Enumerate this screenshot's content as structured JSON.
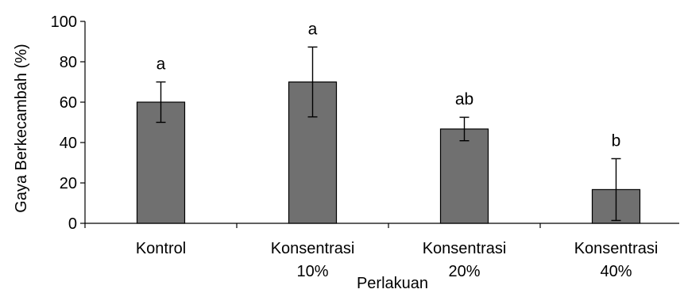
{
  "chart_data": {
    "type": "bar",
    "title": "",
    "xlabel": "Perlakuan",
    "ylabel": "Gaya Berkecambah (%)",
    "ylim": [
      0,
      100
    ],
    "yticks": [
      0,
      20,
      40,
      60,
      80,
      100
    ],
    "grid": false,
    "categories": [
      [
        "Kontrol"
      ],
      [
        "Konsentrasi",
        "10%"
      ],
      [
        "Konsentrasi",
        "20%"
      ],
      [
        "Konsentrasi",
        "40%"
      ]
    ],
    "values": [
      60,
      70,
      46.7,
      16.7
    ],
    "error": [
      10,
      17.3,
      5.8,
      15.3
    ],
    "significance": [
      "a",
      "a",
      "ab",
      "b"
    ],
    "colors": {
      "bar": "#707070",
      "bar_stroke": "#000000",
      "axis": "#000000"
    }
  }
}
